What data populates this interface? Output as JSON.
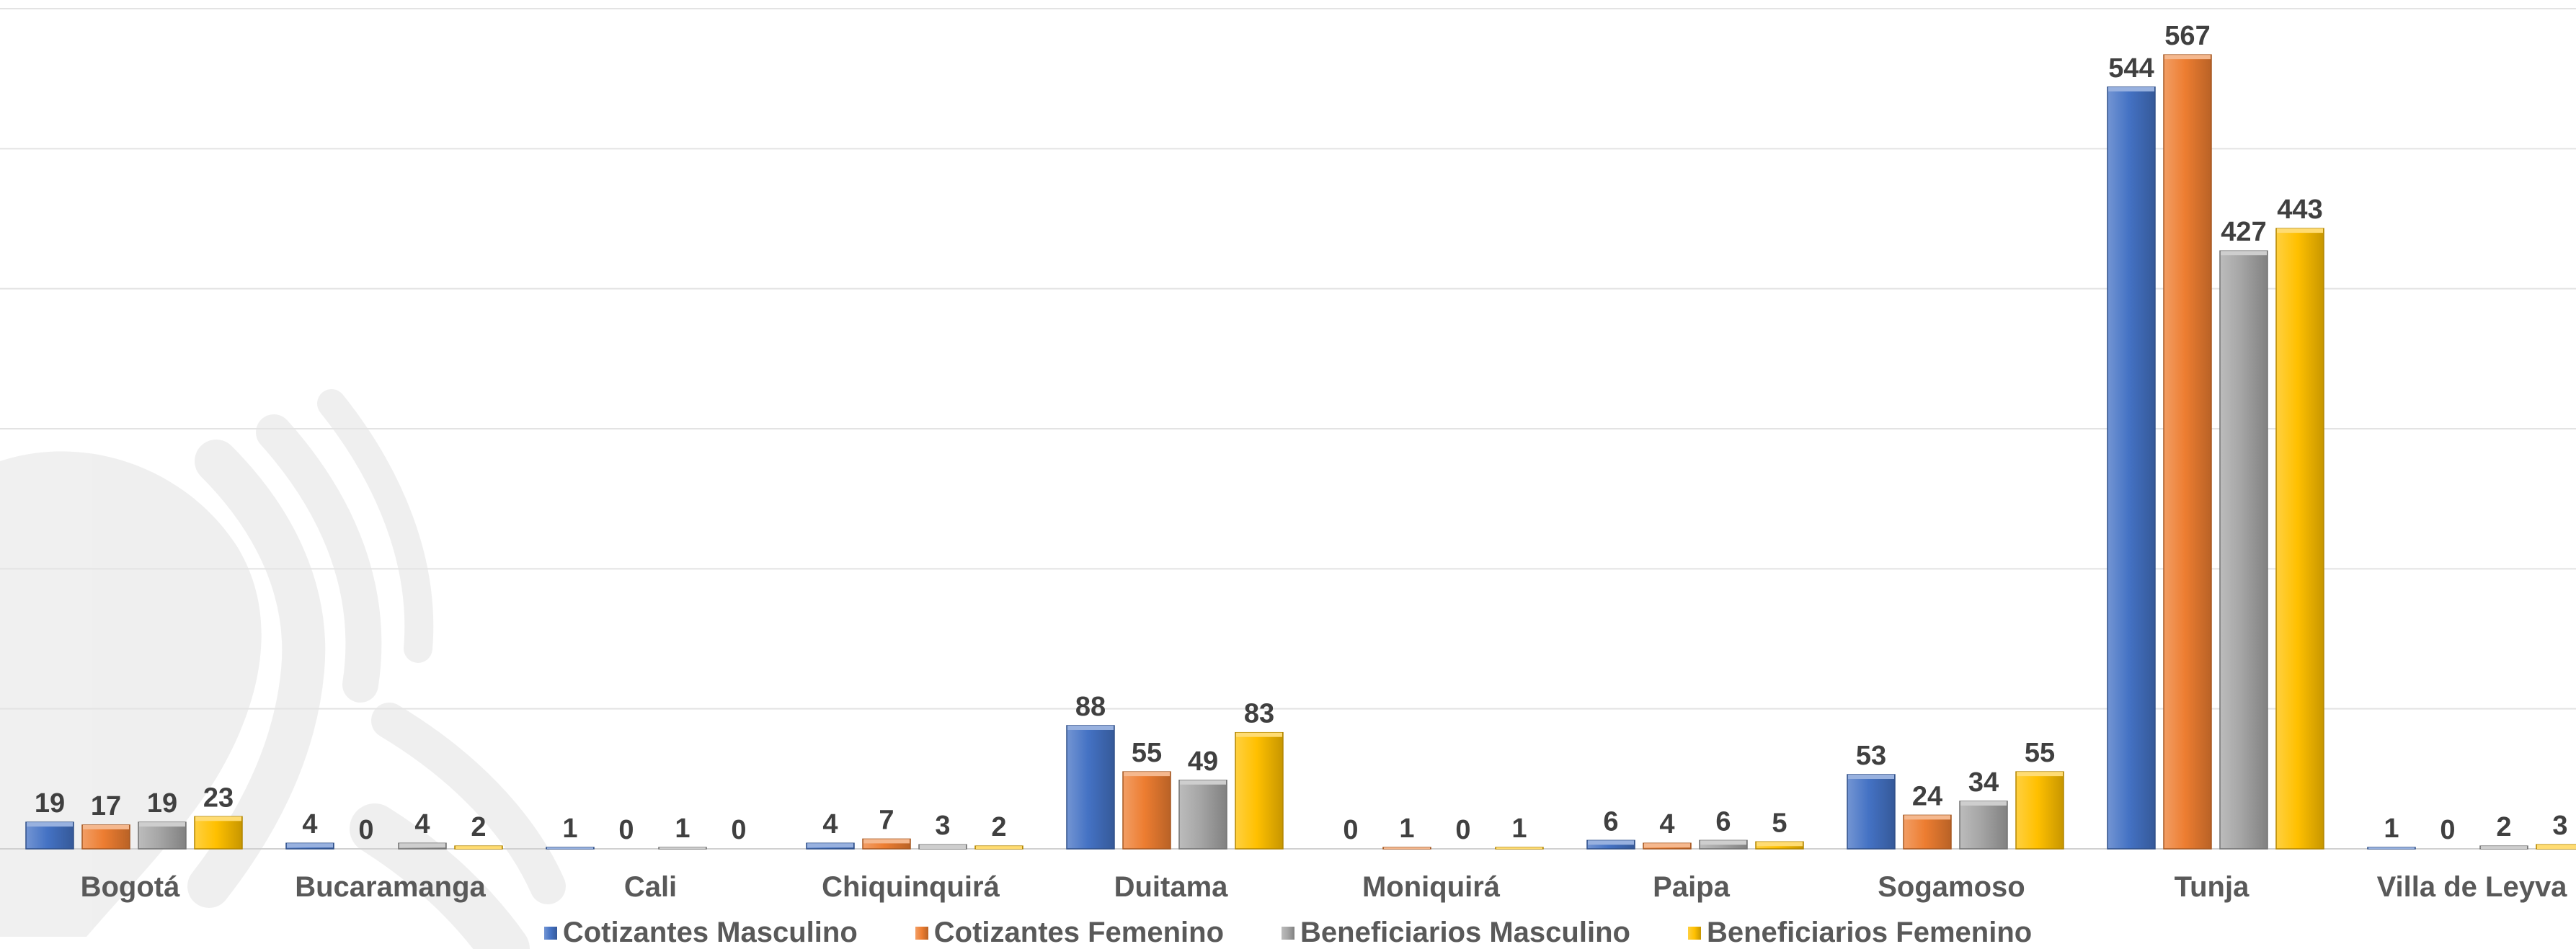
{
  "chart_data": {
    "type": "bar",
    "title": "",
    "xlabel": "",
    "ylabel": "",
    "ylim": [
      0,
      600
    ],
    "grid": true,
    "legend_position": "bottom",
    "categories": [
      "Bogotá",
      "Bucaramanga",
      "Cali",
      "Chiquinquirá",
      "Duitama",
      "Moniquirá",
      "Paipa",
      "Sogamoso",
      "Tunja",
      "Villa de Leyva"
    ],
    "series": [
      {
        "name": "Cotizantes Masculino",
        "color": "#4472C4",
        "values": [
          19,
          4,
          1,
          4,
          88,
          0,
          6,
          53,
          544,
          1
        ]
      },
      {
        "name": "Cotizantes Femenino",
        "color": "#ED7D31",
        "values": [
          17,
          0,
          0,
          7,
          55,
          1,
          4,
          24,
          567,
          0
        ]
      },
      {
        "name": "Beneficiarios Masculino",
        "color": "#A5A5A5",
        "values": [
          19,
          4,
          1,
          3,
          49,
          0,
          6,
          34,
          427,
          2
        ]
      },
      {
        "name": "Beneficiarios Femenino",
        "color": "#FFC000",
        "values": [
          23,
          2,
          0,
          2,
          83,
          1,
          5,
          55,
          443,
          3
        ]
      }
    ]
  }
}
